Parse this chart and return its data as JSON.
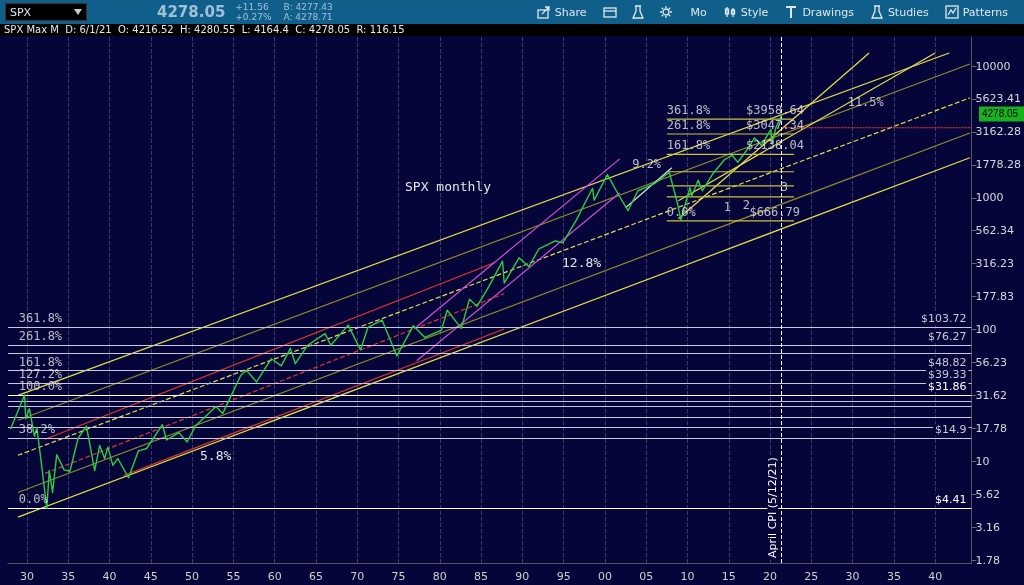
{
  "chart_data": {
    "type": "line",
    "title": "SPX",
    "subtitle": "SPX Max M  D: 6/1/21  O: 4216.52  H: 4280.55  L: 4164.4  C: 4278.05  R: 116.15",
    "marker": "none",
    "log": "y",
    "grid": "x",
    "xlim": [
      1927.7,
      2044.4
    ],
    "xticks": [
      {
        "value": 1930,
        "label": "30"
      },
      {
        "value": 1935,
        "label": "35"
      },
      {
        "value": 1940,
        "label": "40"
      },
      {
        "value": 1945,
        "label": "45"
      },
      {
        "value": 1950,
        "label": "50"
      },
      {
        "value": 1955,
        "label": "55"
      },
      {
        "value": 1960,
        "label": "60"
      },
      {
        "value": 1965,
        "label": "65"
      },
      {
        "value": 1970,
        "label": "70"
      },
      {
        "value": 1975,
        "label": "75"
      },
      {
        "value": 1980,
        "label": "80"
      },
      {
        "value": 1985,
        "label": "85"
      },
      {
        "value": 1990,
        "label": "90"
      },
      {
        "value": 1995,
        "label": "95"
      },
      {
        "value": 2000,
        "label": "00"
      },
      {
        "value": 2005,
        "label": "05"
      },
      {
        "value": 2010,
        "label": "10"
      },
      {
        "value": 2015,
        "label": "15"
      },
      {
        "value": 2020,
        "label": "20"
      },
      {
        "value": 2025,
        "label": "25"
      },
      {
        "value": 2030,
        "label": "30"
      },
      {
        "value": 2035,
        "label": "35"
      },
      {
        "value": 2040,
        "label": "40"
      }
    ],
    "ylim": [
      1.69,
      16600
    ],
    "yticks": [
      1.78,
      3.16,
      5.62,
      10,
      17.78,
      31.62,
      56.23,
      100,
      177.83,
      316.23,
      562.34,
      1000,
      1778.28,
      3162.28,
      5623.41,
      10000
    ],
    "series": [
      {
        "color": "#2ecc40",
        "x": [
          1928.0,
          1928.9,
          1929.7,
          1929.85,
          1930.3,
          1930.9,
          1931.2,
          1931.9,
          1932.4,
          1932.7,
          1933.1,
          1933.6,
          1934.5,
          1935.2,
          1936.2,
          1937.2,
          1938.2,
          1938.8,
          1939.4,
          1939.8,
          1940.4,
          1941.0,
          1942.3,
          1943.5,
          1944.5,
          1946.4,
          1946.9,
          1948.4,
          1949.4,
          1950.4,
          1952.9,
          1953.7,
          1955.9,
          1956.6,
          1957.8,
          1959.6,
          1960.8,
          1961.9,
          1962.5,
          1964.0,
          1966.1,
          1966.8,
          1968.9,
          1970.4,
          1971.3,
          1973.0,
          1974.8,
          1976.8,
          1978.2,
          1980.2,
          1980.9,
          1982.6,
          1983.6,
          1984.5,
          1985.9,
          1987.6,
          1987.8,
          1989.6,
          1990.8,
          1992.0,
          1994.0,
          1994.9,
          1996.5,
          1997.8,
          1998.5,
          1998.7,
          2000.3,
          2001.7,
          2002.8,
          2004.0,
          2006.0,
          2007.8,
          2008.8,
          2009.2,
          2010.3,
          2010.5,
          2011.3,
          2011.8,
          2013.0,
          2014.5,
          2015.4,
          2016.1,
          2017.5,
          2018.1,
          2018.95,
          2020.1,
          2020.25,
          2020.7,
          2021.42
        ],
        "values": [
          17.5,
          24,
          31.9,
          21,
          25,
          15.5,
          18,
          8,
          4.4,
          8.5,
          5.8,
          11.2,
          8.6,
          8.4,
          15,
          18.5,
          8.5,
          13.2,
          10.5,
          12.8,
          9.3,
          10.5,
          7.5,
          12,
          12.5,
          19,
          14.5,
          16.5,
          14,
          18.5,
          26,
          23,
          45,
          49,
          40,
          60,
          53,
          72,
          55,
          76,
          93,
          76,
          108,
          70,
          104,
          118,
          63,
          107,
          87,
          99,
          140,
          102,
          170,
          150,
          210,
          330,
          225,
          350,
          300,
          410,
          470,
          455,
          670,
          970,
          1180,
          960,
          1500,
          1040,
          800,
          1130,
          1280,
          1560,
          900,
          680,
          1200,
          1030,
          1360,
          1130,
          1500,
          1950,
          2100,
          1860,
          2450,
          2850,
          2500,
          3300,
          2580,
          3400,
          4278.05
        ]
      },
      {
        "color": "#e5e04a",
        "x": [
          1928.9,
          2041.7
        ],
        "values": [
          31.6,
          12560
        ]
      },
      {
        "color": "#8f8a2a",
        "x": [
          1928.9,
          2044.2
        ],
        "values": [
          20.5,
          10350
        ]
      },
      {
        "color": "#e5e04a",
        "line_style": "dashed",
        "x": [
          1928.9,
          2044.2
        ],
        "values": [
          11.1,
          5730
        ]
      },
      {
        "color": "#8f8a2a",
        "x": [
          1928.9,
          2044.2
        ],
        "values": [
          5.8,
          3100
        ]
      },
      {
        "color": "#e5e04a",
        "x": [
          1928.9,
          2044.2
        ],
        "values": [
          3.77,
          2010
        ]
      },
      {
        "color": "#e0382a",
        "x": [
          1932.2,
          1986.6
        ],
        "values": [
          14.7,
          321
        ]
      },
      {
        "color": "#e0382a",
        "line_style": "dashed",
        "x": [
          1932.2,
          1987.8
        ],
        "values": [
          8.1,
          187
        ]
      },
      {
        "color": "#e0382a",
        "x": [
          1941.7,
          1987.8
        ],
        "values": [
          7.8,
          101
        ]
      },
      {
        "color": "#d44fd4",
        "x": [
          1977.2,
          2001.8
        ],
        "values": [
          105,
          1973
        ]
      },
      {
        "color": "#d44fd4",
        "x": [
          1977.2,
          2001.8
        ],
        "values": [
          58,
          1090
        ]
      },
      {
        "color": "#e0e0e0",
        "x": [
          2002.5,
          2008.1
        ],
        "values": [
          840,
          1690
        ]
      },
      {
        "color": "#e5e04a",
        "x": [
          2008.9,
          2032.0
        ],
        "values": [
          693,
          12560
        ]
      },
      {
        "color": "#e5e04a",
        "x": [
          2008.9,
          2040.0
        ],
        "values": [
          950,
          12560
        ]
      },
      {
        "color": "#ff3b30",
        "line_style": "dotted",
        "x": [
          2021.4,
          2044.4
        ],
        "values": [
          3400,
          3400
        ]
      },
      {
        "color": "#c9c43a",
        "x": [
          2007.5,
          2022.9
        ],
        "values": [
          666.79,
          666.79
        ]
      },
      {
        "color": "#c9c43a",
        "x": [
          2007.5,
          2022.9
        ],
        "values": [
          1014,
          1014
        ]
      },
      {
        "color": "#c9c43a",
        "x": [
          2007.5,
          2022.9
        ],
        "values": [
          1229,
          1229
        ]
      },
      {
        "color": "#c9c43a",
        "x": [
          2007.5,
          2022.9
        ],
        "values": [
          1576,
          1576
        ]
      },
      {
        "color": "#c9c43a",
        "x": [
          2007.5,
          2022.9
        ],
        "values": [
          2138.04,
          2138.04
        ]
      },
      {
        "color": "#c9c43a",
        "x": [
          2007.5,
          2022.9
        ],
        "values": [
          3047.34,
          3047.34
        ]
      },
      {
        "color": "#c9c43a",
        "x": [
          2007.5,
          2022.9
        ],
        "values": [
          3958.64,
          3958.64
        ]
      }
    ],
    "ref_lines": [
      {
        "axis": "y",
        "value": 103.72,
        "label": "$103.72",
        "color": "#c8c8d8"
      },
      {
        "axis": "y",
        "value": 76.27,
        "label": "$76.27",
        "color": "#c8c8d8"
      },
      {
        "axis": "y",
        "value": 65.8,
        "label": null,
        "color": "#c8c8d8"
      },
      {
        "axis": "y",
        "value": 48.82,
        "label": "$48.82",
        "color": "#c8c8d8"
      },
      {
        "axis": "y",
        "value": 39.33,
        "label": "$39.33",
        "color": "#c8c8d8"
      },
      {
        "axis": "y",
        "value": 31.86,
        "label": "$31.86",
        "color": "#ffffff"
      },
      {
        "axis": "y",
        "value": 28.7,
        "label": null,
        "color": "#c8c8d8"
      },
      {
        "axis": "y",
        "value": 26.0,
        "label": null,
        "color": "#c8c8d8"
      },
      {
        "axis": "y",
        "value": 21.4,
        "label": null,
        "color": "#c8c8d8"
      },
      {
        "axis": "y",
        "value": 18.1,
        "label": null,
        "color": "#c8c8d8"
      },
      {
        "axis": "y",
        "value": 14.9,
        "label": "$14.9",
        "color": "#c8c8d8"
      },
      {
        "axis": "y",
        "value": 4.41,
        "label": "$4.41",
        "color": "#ffffff"
      },
      {
        "axis": "x",
        "value": 2021.36,
        "label": "April CPI (5/12/21)",
        "color": "#ffffff",
        "line_style": "dashed"
      }
    ],
    "annotations": [
      "4278.05",
      "+11.56",
      "+0.27%",
      "B: 4277.43",
      "A: 4278.71",
      "Share",
      "Mo",
      "Style",
      "Drawings",
      "Studies",
      "Patterns",
      {
        "text": "361.8%",
        "x": 1929.0,
        "y": 103.72
      },
      {
        "text": "261.8%",
        "x": 1929.0,
        "y": 76.27
      },
      {
        "text": "161.8%",
        "x": 1929.0,
        "y": 48.82
      },
      {
        "text": "127.2%",
        "x": 1929.0,
        "y": 39.33
      },
      {
        "text": "100.0%",
        "x": 1929.0,
        "y": 31.86
      },
      {
        "text": "38.2%",
        "x": 1929.0,
        "y": 14.9
      },
      {
        "text": "0.0%",
        "x": 1929.0,
        "y": 4.41
      },
      {
        "text": "361.8%",
        "x": 2007.5,
        "y": 3958.64
      },
      {
        "text": "$3958.64",
        "x": 2017.1,
        "y": 3958.64
      },
      {
        "text": "261.8%",
        "x": 2007.5,
        "y": 3047.34
      },
      {
        "text": "$3047.34",
        "x": 2017.1,
        "y": 3047.34
      },
      {
        "text": "161.8%",
        "x": 2007.5,
        "y": 2138.04
      },
      {
        "text": "$2138.04",
        "x": 2017.1,
        "y": 2138.04
      },
      {
        "text": "0.0%",
        "x": 2007.5,
        "y": 666.79
      },
      {
        "text": "$666.79",
        "x": 2017.5,
        "y": 666.79
      },
      {
        "text": "9.2%",
        "x": 2003.3,
        "y": 1546
      },
      {
        "text": "11.5%",
        "x": 2029.4,
        "y": 4560
      },
      {
        "text": "1",
        "x": 2014.4,
        "y": 730
      },
      {
        "text": "2",
        "x": 2016.7,
        "y": 756
      },
      {
        "text": "3",
        "x": 2021.3,
        "y": 1036
      },
      "5.8%",
      "12.8%",
      "SPX monthly",
      "4278.05"
    ]
  }
}
